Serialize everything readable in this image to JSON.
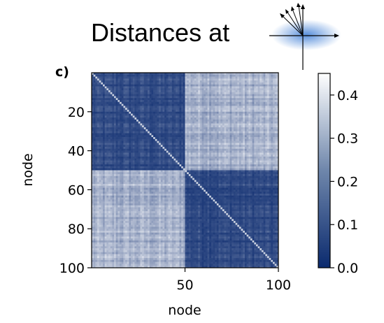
{
  "title": "Distances at",
  "panel_label": "c)",
  "colors": {
    "low": "#0b2a6e",
    "high": "#ffffff",
    "inset_glow": "#3a7bd5",
    "axis": "#000000"
  },
  "chart_data": {
    "type": "heatmap",
    "xlabel": "node",
    "ylabel": "node",
    "xlim": [
      1,
      100
    ],
    "ylim": [
      1,
      100
    ],
    "x_ticks": [
      50,
      100
    ],
    "y_ticks": [
      20,
      40,
      60,
      80,
      100
    ],
    "n_nodes": 100,
    "clusters": [
      {
        "start": 1,
        "end": 50
      },
      {
        "start": 51,
        "end": 100
      }
    ],
    "within_cluster_distance": 0.03,
    "between_cluster_distance": 0.3,
    "colorbar": {
      "min": 0.0,
      "max": 0.45,
      "ticks": [
        0.0,
        0.1,
        0.2,
        0.3,
        0.4
      ],
      "tick_labels": [
        "0.0",
        "0.1",
        "0.2",
        "0.3",
        "0.4"
      ]
    }
  }
}
